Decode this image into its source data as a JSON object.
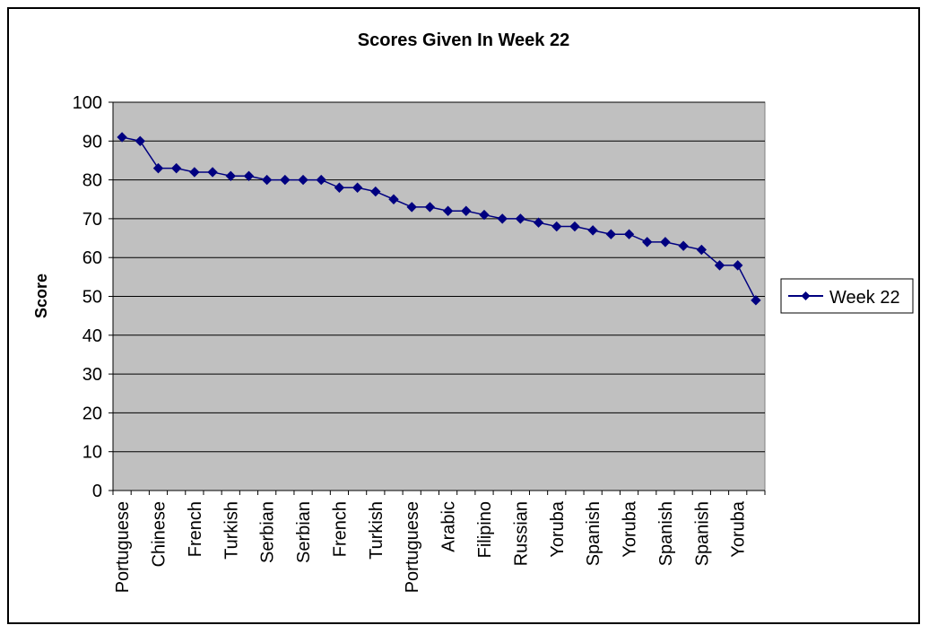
{
  "colors": {
    "plot_background": "#c0c0c0",
    "series": "#000080",
    "gridline": "#000000",
    "frame": "#000000"
  },
  "chart_data": {
    "type": "line",
    "title": "Scores Given In Week 22",
    "xlabel": "",
    "ylabel": "Score",
    "ylim": [
      0,
      100
    ],
    "yticks": [
      0,
      10,
      20,
      30,
      40,
      50,
      60,
      70,
      80,
      90,
      100
    ],
    "grid": true,
    "legend_position": "right",
    "categories": [
      "Portuguese",
      "",
      "Chinese",
      "",
      "French",
      "",
      "Turkish",
      "",
      "Serbian",
      "",
      "Serbian",
      "",
      "French",
      "",
      "Turkish",
      "",
      "Portuguese",
      "",
      "Arabic",
      "",
      "Filipino",
      "",
      "Russian",
      "",
      "Yoruba",
      "",
      "Spanish",
      "",
      "Yoruba",
      "",
      "Spanish",
      "",
      "Spanish",
      "",
      "Yoruba",
      ""
    ],
    "series": [
      {
        "name": "Week 22",
        "marker": "diamond",
        "values": [
          91,
          90,
          83,
          83,
          82,
          82,
          81,
          81,
          80,
          80,
          80,
          80,
          78,
          78,
          77,
          75,
          73,
          73,
          72,
          72,
          71,
          70,
          70,
          69,
          68,
          68,
          67,
          66,
          66,
          64,
          64,
          63,
          62,
          58,
          58,
          49
        ]
      }
    ]
  }
}
